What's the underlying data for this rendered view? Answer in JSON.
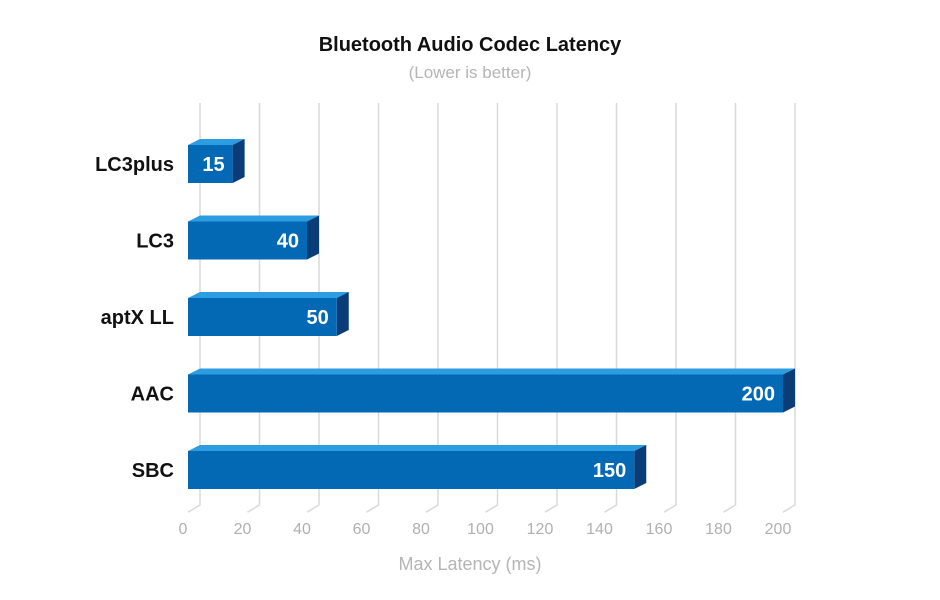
{
  "chart_data": {
    "type": "bar",
    "orientation": "horizontal",
    "title": "Bluetooth Audio Codec Latency",
    "subtitle": "(Lower is better)",
    "xlabel": "Max Latency (ms)",
    "ylabel": "",
    "categories": [
      "LC3plus",
      "LC3",
      "aptX LL",
      "AAC",
      "SBC"
    ],
    "values": [
      15,
      40,
      50,
      200,
      150
    ],
    "xlim": [
      0,
      200
    ],
    "ticks": [
      "0",
      "20",
      "40",
      "60",
      "80",
      "100",
      "120",
      "140",
      "160",
      "180",
      "200"
    ],
    "grid": true,
    "colors": {
      "front": "#0369b4",
      "top": "#2b9de0",
      "side": "#0a3d78",
      "grid": "#d9d9d9"
    }
  }
}
